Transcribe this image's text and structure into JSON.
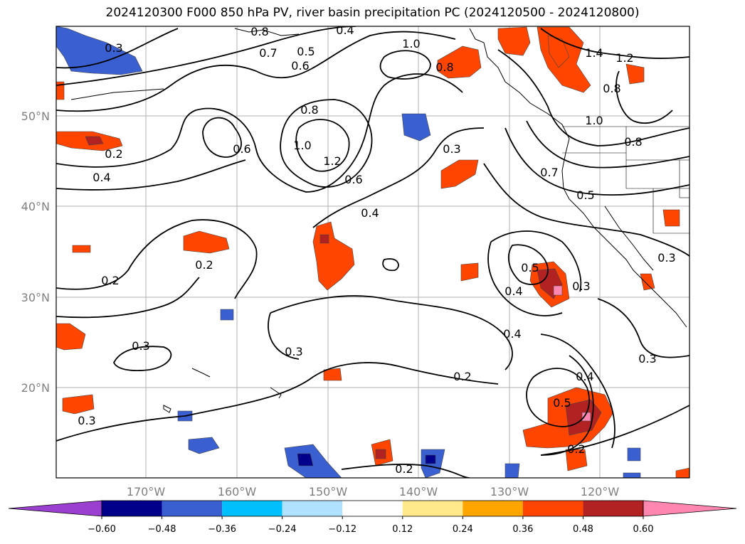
{
  "title": "2024120300 F000 850 hPa PV, river basin precipitation PC (2024120500 - 2024120800)",
  "map": {
    "lat_labels": [
      "50°N",
      "40°N",
      "30°N",
      "20°N"
    ],
    "lon_labels": [
      "170°W",
      "160°W",
      "150°W",
      "140°W",
      "130°W",
      "120°W"
    ],
    "gridlines": true
  },
  "pv_contour_labels": [
    "0.8",
    "0.4",
    "0.7",
    "0.6",
    "0.5",
    "1.0",
    "0.8",
    "1.4",
    "1.2",
    "0.8",
    "0.3",
    "0.8",
    "0.6",
    "1.0",
    "1.2",
    "0.2",
    "0.4",
    "0.6",
    "0.3",
    "0.7",
    "0.5",
    "0.4",
    "1.0",
    "0.8",
    "0.2",
    "0.2",
    "0.5",
    "0.3",
    "0.4",
    "0.3",
    "0.4",
    "0.3",
    "0.3",
    "0.2",
    "0.5",
    "0.4",
    "0.3",
    "0.3",
    "0.2",
    "0.2"
  ],
  "colorbar": {
    "ticks": [
      "−0.60",
      "−0.48",
      "−0.36",
      "−0.24",
      "−0.12",
      "0.12",
      "0.24",
      "0.36",
      "0.48",
      "0.60"
    ],
    "colors": [
      "#9b3fd0",
      "#00008b",
      "#3a5fd0",
      "#00bfff",
      "#b0e2ff",
      "#ffffff",
      "#ffe98a",
      "#ffa500",
      "#ff4500",
      "#b22222",
      "#ff86b0",
      "#ff86b0"
    ]
  }
}
